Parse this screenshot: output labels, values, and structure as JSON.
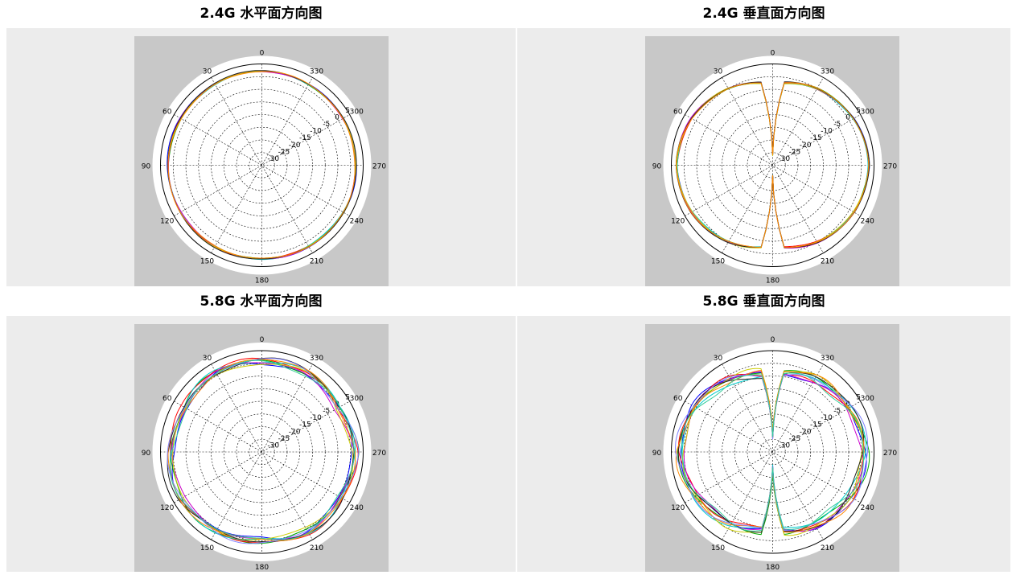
{
  "colors": {
    "panel_bg": "#ececec",
    "plot_bg": "#c8c8c8",
    "series_palette": [
      "#0000ff",
      "#00aa00",
      "#ff0000",
      "#00cccc",
      "#cc00cc",
      "#cccc00",
      "#222222",
      "#ff8800",
      "#7f7fff",
      "#33cc99"
    ]
  },
  "chart_data": [
    {
      "type": "polar",
      "title": "2.4G 水平面方向图",
      "theta_labels": [
        "0",
        "30",
        "60",
        "90",
        "120",
        "150",
        "180",
        "210",
        "240",
        "270",
        "300",
        "330"
      ],
      "r_ticks": [
        "5",
        "0",
        "-5",
        "-10",
        "-15",
        "-20",
        "-25",
        "-30"
      ],
      "rlim": [
        -35,
        5
      ],
      "grid": true,
      "pattern": "omni",
      "series_count": 8,
      "series": [
        {
          "values": [
            2,
            2,
            2,
            2,
            2,
            2,
            2,
            2,
            2,
            2,
            2,
            2,
            2
          ]
        }
      ]
    },
    {
      "type": "polar",
      "title": "2.4G 垂直面方向图",
      "theta_labels": [
        "0",
        "30",
        "60",
        "90",
        "120",
        "150",
        "180",
        "210",
        "240",
        "270",
        "300",
        "330"
      ],
      "r_ticks": [
        "5",
        "0",
        "-5",
        "-10",
        "-15",
        "-20",
        "-25",
        "-30"
      ],
      "rlim": [
        -35,
        5
      ],
      "grid": true,
      "pattern": "dipole",
      "series_count": 8,
      "series": [
        {
          "values": [
            -3,
            0,
            2,
            3,
            2,
            0,
            -3
          ]
        }
      ]
    },
    {
      "type": "polar",
      "title": "5.8G 水平面方向图",
      "theta_labels": [
        "0",
        "30",
        "60",
        "90",
        "120",
        "150",
        "180",
        "210",
        "240",
        "270",
        "300",
        "330"
      ],
      "r_ticks": [
        "5",
        "0",
        "-5",
        "-10",
        "-15",
        "-20",
        "-25",
        "-30"
      ],
      "rlim": [
        -35,
        5
      ],
      "grid": true,
      "pattern": "omni-rippled",
      "series_count": 10,
      "series": [
        {
          "values": [
            1,
            1,
            0,
            1,
            2,
            1,
            0,
            1,
            1,
            2,
            0,
            1,
            1
          ]
        }
      ]
    },
    {
      "type": "polar",
      "title": "5.8G 垂直面方向图",
      "theta_labels": [
        "0",
        "30",
        "60",
        "90",
        "120",
        "150",
        "180",
        "210",
        "240",
        "270",
        "300",
        "330"
      ],
      "r_ticks": [
        "5",
        "0",
        "-5",
        "-10",
        "-15",
        "-20",
        "-25",
        "-30"
      ],
      "rlim": [
        -35,
        5
      ],
      "grid": true,
      "pattern": "dipole-rippled",
      "series_count": 10,
      "series": [
        {
          "values": [
            -5,
            -2,
            0,
            1,
            0,
            -2,
            -5
          ]
        }
      ]
    }
  ]
}
